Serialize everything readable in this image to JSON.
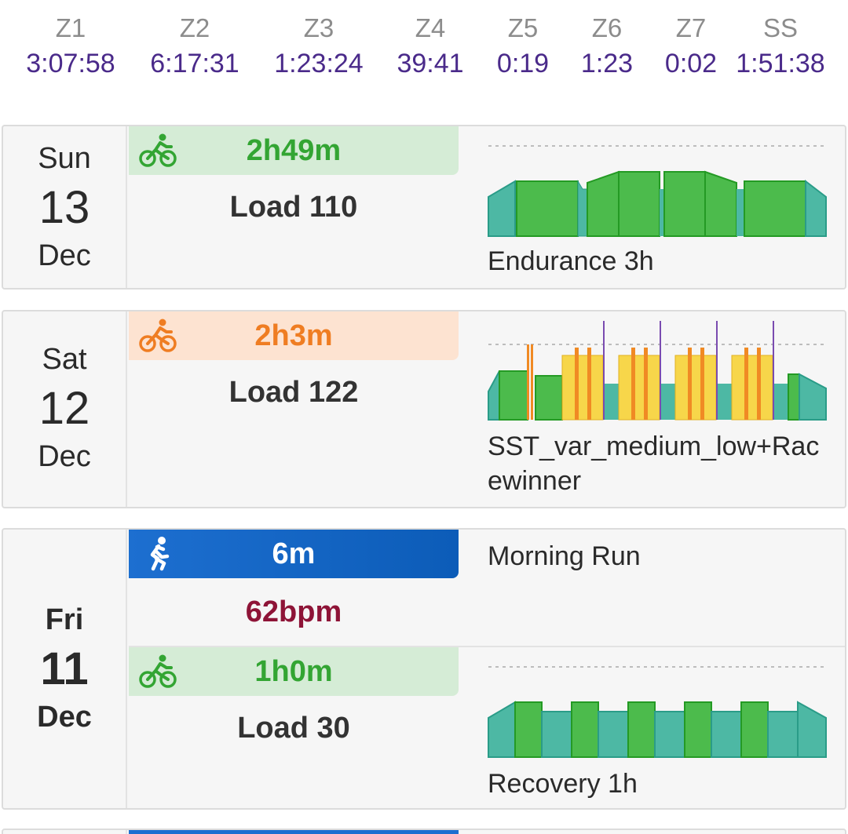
{
  "zones": [
    {
      "name": "Z1",
      "time": "3:07:58"
    },
    {
      "name": "Z2",
      "time": "6:17:31"
    },
    {
      "name": "Z3",
      "time": "1:23:24"
    },
    {
      "name": "Z4",
      "time": "39:41"
    },
    {
      "name": "Z5",
      "time": "0:19"
    },
    {
      "name": "Z6",
      "time": "1:23"
    },
    {
      "name": "Z7",
      "time": "0:02"
    },
    {
      "name": "SS",
      "time": "1:51:38"
    }
  ],
  "days": [
    {
      "weekday": "Sun",
      "date": "13",
      "month": "Dec",
      "activities": [
        {
          "type": "ride",
          "icon": "bike-icon",
          "duration": "2h49m",
          "status": "completed",
          "stat": "Load 110",
          "workout_name": "Endurance 3h"
        }
      ]
    },
    {
      "weekday": "Sat",
      "date": "12",
      "month": "Dec",
      "activities": [
        {
          "type": "ride",
          "icon": "bike-icon",
          "duration": "2h3m",
          "status": "partial",
          "stat": "Load 122",
          "workout_name": "SST_var_medium_low+Racewinner"
        }
      ]
    },
    {
      "weekday": "Fri",
      "date": "11",
      "month": "Dec",
      "activities": [
        {
          "type": "run",
          "icon": "run-icon",
          "duration": "6m",
          "status": "unplanned",
          "stat": "62bpm",
          "workout_name": "Morning Run"
        },
        {
          "type": "ride",
          "icon": "bike-icon",
          "duration": "1h0m",
          "status": "completed",
          "stat": "Load 30",
          "workout_name": "Recovery 1h"
        }
      ]
    }
  ],
  "colors": {
    "zone_time": "#4a2a8a",
    "completed": "#33a533",
    "partial": "#ef7d22",
    "run": "#1d6fd0",
    "hr_text": "#8e1437",
    "teal": "#4db8a4",
    "green": "#4cbb4c",
    "yellow": "#f7d64a",
    "orange": "#f08a24",
    "purple": "#7a4bb0"
  }
}
